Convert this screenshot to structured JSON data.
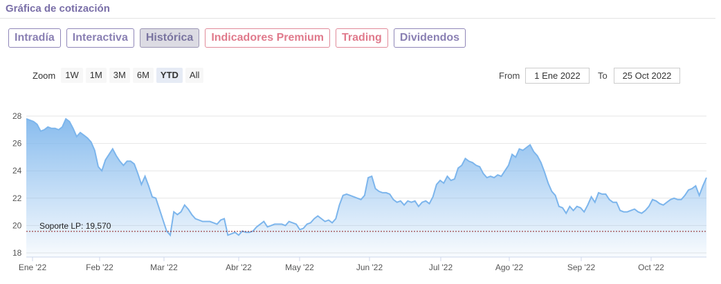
{
  "header": {
    "title": "Gráfica de cotización"
  },
  "tabs": [
    {
      "label": "Intradía",
      "active": false,
      "premium": false
    },
    {
      "label": "Interactiva",
      "active": false,
      "premium": false
    },
    {
      "label": "Histórica",
      "active": true,
      "premium": false
    },
    {
      "label": "Indicadores Premium",
      "active": false,
      "premium": true
    },
    {
      "label": "Trading",
      "active": false,
      "premium": true
    },
    {
      "label": "Dividendos",
      "active": false,
      "premium": false
    }
  ],
  "zoom": {
    "label": "Zoom",
    "buttons": [
      {
        "label": "1W",
        "active": false
      },
      {
        "label": "1M",
        "active": false
      },
      {
        "label": "3M",
        "active": false
      },
      {
        "label": "6M",
        "active": false
      },
      {
        "label": "YTD",
        "active": true
      },
      {
        "label": "All",
        "active": false
      }
    ]
  },
  "range": {
    "from_label": "From",
    "from_value": "1 Ene 2022",
    "to_label": "To",
    "to_value": "25 Oct 2022"
  },
  "colors": {
    "line": "#7cb5ec",
    "area_top": "#7cb5ec",
    "support": "#8b1a1a",
    "accent": "#8a80b3",
    "premium": "#e07a8c"
  },
  "chart_data": {
    "type": "area",
    "y_ticks": [
      "18",
      "20",
      "22",
      "24",
      "26",
      "28"
    ],
    "x_ticks": [
      "Ene '22",
      "Feb '22",
      "Mar '22",
      "Abr '22",
      "May '22",
      "Jun '22",
      "Jul '22",
      "Ago '22",
      "Sep '22",
      "Oct '22"
    ],
    "ylim": [
      18,
      28
    ],
    "grid": true,
    "support": {
      "label": "Soporte LP: 19,570",
      "value": 19.57
    },
    "series": [
      {
        "values": [
          27.8,
          27.7,
          27.6,
          27.4,
          26.9,
          27.0,
          27.2,
          27.1,
          27.1,
          27.0,
          27.2,
          27.8,
          27.6,
          27.1,
          26.5,
          26.8,
          26.6,
          26.4,
          26.1,
          25.5,
          24.3,
          24.0,
          24.8,
          25.2,
          25.6,
          25.1,
          24.7,
          24.4,
          24.7,
          24.7,
          24.5,
          23.8,
          23.0,
          23.6,
          22.9,
          22.1,
          22.0,
          21.2,
          20.4,
          19.6,
          19.3,
          21.0,
          20.8,
          21.0,
          21.5,
          21.2,
          20.8,
          20.5,
          20.4,
          20.3,
          20.3,
          20.3,
          20.2,
          20.1,
          20.4,
          20.5,
          19.3,
          19.4,
          19.5,
          19.3,
          19.6,
          19.5,
          19.5,
          19.6,
          19.9,
          20.1,
          20.3,
          19.9,
          20.0,
          20.1,
          20.1,
          20.1,
          20.0,
          20.3,
          20.2,
          20.1,
          19.7,
          19.8,
          20.1,
          20.2,
          20.5,
          20.7,
          20.5,
          20.3,
          20.4,
          20.2,
          20.5,
          21.5,
          22.2,
          22.3,
          22.2,
          22.1,
          22.0,
          21.9,
          22.2,
          23.5,
          23.6,
          22.7,
          22.5,
          22.4,
          22.4,
          22.3,
          21.9,
          21.7,
          21.8,
          21.5,
          21.8,
          21.7,
          21.8,
          21.4,
          21.7,
          21.8,
          21.6,
          22.1,
          23.0,
          23.3,
          23.1,
          23.6,
          23.3,
          23.4,
          24.2,
          24.4,
          24.9,
          24.7,
          24.6,
          24.4,
          24.3,
          23.8,
          23.5,
          23.6,
          23.5,
          23.7,
          23.6,
          24.0,
          24.4,
          25.2,
          25.0,
          25.6,
          25.5,
          25.7,
          25.9,
          25.4,
          25.1,
          24.6,
          23.9,
          23.1,
          22.5,
          22.2,
          21.4,
          21.3,
          20.9,
          21.4,
          21.1,
          21.4,
          21.3,
          21.0,
          21.5,
          22.1,
          21.7,
          22.4,
          22.3,
          22.3,
          21.9,
          21.7,
          21.7,
          21.1,
          21.0,
          21.0,
          21.1,
          21.2,
          21.0,
          20.9,
          21.1,
          21.4,
          21.9,
          21.8,
          21.6,
          21.5,
          21.7,
          21.9,
          22.0,
          21.9,
          21.9,
          22.2,
          22.6,
          22.7,
          22.9,
          22.2,
          22.9,
          23.5
        ]
      }
    ]
  }
}
